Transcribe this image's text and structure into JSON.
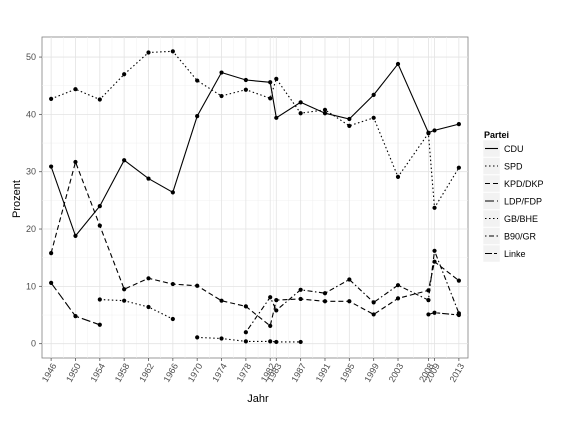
{
  "chart_data": {
    "type": "line",
    "xlabel": "Jahr",
    "ylabel": "Prozent",
    "xlim": [
      1944.5,
      2014.5
    ],
    "ylim": [
      -2.5,
      53.5
    ],
    "x_ticks": [
      1946,
      1950,
      1954,
      1958,
      1962,
      1966,
      1970,
      1974,
      1978,
      1982,
      1983,
      1987,
      1991,
      1995,
      1999,
      2003,
      2008,
      2009,
      2013
    ],
    "y_ticks": [
      0,
      10,
      20,
      30,
      40,
      50
    ],
    "grid": true,
    "legend_title": "Partei",
    "legend_position": "right",
    "series": [
      {
        "name": "CDU",
        "dash": "solid",
        "segments": [
          [
            [
              1946,
              30.9
            ],
            [
              1950,
              18.8
            ],
            [
              1954,
              24.0
            ],
            [
              1958,
              32.0
            ],
            [
              1962,
              28.8
            ],
            [
              1966,
              26.4
            ],
            [
              1970,
              39.7
            ],
            [
              1974,
              47.3
            ],
            [
              1978,
              46.0
            ],
            [
              1982,
              45.6
            ],
            [
              1983,
              39.4
            ],
            [
              1987,
              42.1
            ],
            [
              1991,
              40.2
            ],
            [
              1995,
              39.2
            ],
            [
              1999,
              43.4
            ],
            [
              2003,
              48.8
            ],
            [
              2008,
              36.8
            ],
            [
              2009,
              37.2
            ],
            [
              2013,
              38.3
            ]
          ]
        ]
      },
      {
        "name": "SPD",
        "dash": "dotted",
        "segments": [
          [
            [
              1946,
              42.7
            ],
            [
              1950,
              44.4
            ],
            [
              1954,
              42.6
            ],
            [
              1958,
              47.0
            ],
            [
              1962,
              50.8
            ],
            [
              1966,
              51.0
            ],
            [
              1970,
              45.9
            ],
            [
              1974,
              43.2
            ],
            [
              1978,
              44.3
            ],
            [
              1982,
              42.8
            ],
            [
              1983,
              46.2
            ],
            [
              1987,
              40.2
            ],
            [
              1991,
              40.8
            ],
            [
              1995,
              38.0
            ],
            [
              1999,
              39.4
            ],
            [
              2003,
              29.1
            ],
            [
              2008,
              36.7
            ],
            [
              2009,
              23.7
            ],
            [
              2013,
              30.7
            ]
          ]
        ]
      },
      {
        "name": "KPD/DKP",
        "dash": "dashed",
        "segments": [
          [
            [
              1946,
              15.8
            ],
            [
              1950,
              31.7
            ],
            [
              1954,
              20.6
            ],
            [
              1958,
              9.5
            ],
            [
              1962,
              11.4
            ],
            [
              1966,
              10.4
            ],
            [
              1970,
              10.1
            ],
            [
              1974,
              7.5
            ],
            [
              1978,
              6.5
            ],
            [
              1982,
              3.1
            ],
            [
              1983,
              7.6
            ],
            [
              1987,
              7.8
            ],
            [
              1991,
              7.4
            ],
            [
              1995,
              7.4
            ],
            [
              1999,
              5.1
            ],
            [
              2003,
              7.9
            ],
            [
              2008,
              9.3
            ],
            [
              2009,
              14.3
            ],
            [
              2013,
              11.0
            ]
          ]
        ]
      },
      {
        "name": "LDP/FDP",
        "dash": "longdash",
        "segments": [
          [
            [
              1946,
              10.6
            ],
            [
              1950,
              4.8
            ],
            [
              1954,
              3.3
            ]
          ]
        ]
      },
      {
        "name": "GB/BHE",
        "dash": "dotted",
        "segments": [
          [
            [
              1954,
              7.7
            ],
            [
              1958,
              7.5
            ],
            [
              1962,
              6.4
            ],
            [
              1966,
              4.3
            ]
          ],
          [
            [
              1970,
              1.1
            ],
            [
              1974,
              0.9
            ],
            [
              1978,
              0.4
            ],
            [
              1982,
              0.4
            ],
            [
              1983,
              0.3
            ],
            [
              1987,
              0.3
            ]
          ]
        ]
      },
      {
        "name": "B90/GR",
        "dash": "dotdash",
        "segments": [
          [
            [
              1978,
              2.0
            ],
            [
              1982,
              8.1
            ],
            [
              1983,
              5.8
            ],
            [
              1987,
              9.4
            ],
            [
              1991,
              8.8
            ],
            [
              1995,
              11.2
            ],
            [
              1999,
              7.2
            ],
            [
              2003,
              10.2
            ],
            [
              2008,
              7.6
            ],
            [
              2009,
              16.2
            ],
            [
              2013,
              5.3
            ]
          ]
        ]
      },
      {
        "name": "Linke",
        "dash": "twodash",
        "segments": [
          [
            [
              2008,
              5.1
            ],
            [
              2009,
              5.4
            ],
            [
              2013,
              5.0
            ]
          ]
        ]
      }
    ]
  }
}
